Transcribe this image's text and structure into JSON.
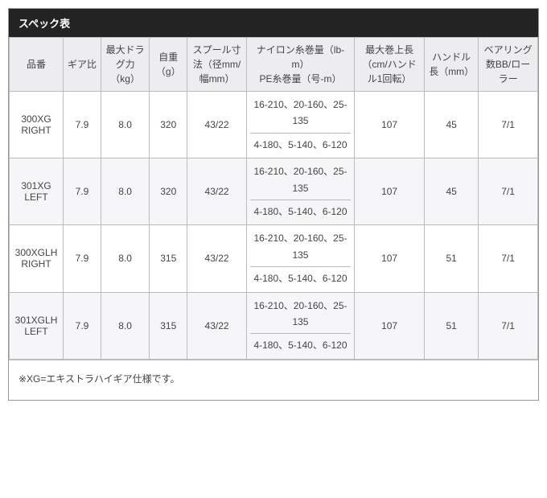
{
  "header": {
    "title": "スペック表"
  },
  "table": {
    "columns": [
      "品番",
      "ギア比",
      "最大ドラグ力（kg）",
      "自重（g）",
      "スプール寸法（径mm/幅mm）",
      "ナイロン糸巻量（lb-m）\nPE糸巻量（号-m）",
      "最大巻上長（cm/ハンドル1回転）",
      "ハンドル長（mm）",
      "ベアリング数BB/ローラー"
    ],
    "col_widths_pct": [
      10,
      7,
      9,
      7,
      11,
      20,
      13,
      10,
      11
    ],
    "header_bg": "#ededef",
    "alt_row_bg": "#f6f6f8",
    "border_color": "#bbbbbb",
    "text_color": "#444444",
    "font_size_pt": 12,
    "rows": [
      {
        "model": "300XG RIGHT",
        "gear": "7.9",
        "drag": "8.0",
        "weight": "320",
        "spool": "43/22",
        "nylon": "16-210、20-160、25-135",
        "pe": "4-180、5-140、6-120",
        "retrieve": "107",
        "handle": "45",
        "bearing": "7/1"
      },
      {
        "model": "301XG LEFT",
        "gear": "7.9",
        "drag": "8.0",
        "weight": "320",
        "spool": "43/22",
        "nylon": "16-210、20-160、25-135",
        "pe": "4-180、5-140、6-120",
        "retrieve": "107",
        "handle": "45",
        "bearing": "7/1"
      },
      {
        "model": "300XGLH RIGHT",
        "gear": "7.9",
        "drag": "8.0",
        "weight": "315",
        "spool": "43/22",
        "nylon": "16-210、20-160、25-135",
        "pe": "4-180、5-140、6-120",
        "retrieve": "107",
        "handle": "51",
        "bearing": "7/1"
      },
      {
        "model": "301XGLH LEFT",
        "gear": "7.9",
        "drag": "8.0",
        "weight": "315",
        "spool": "43/22",
        "nylon": "16-210、20-160、25-135",
        "pe": "4-180、5-140、6-120",
        "retrieve": "107",
        "handle": "51",
        "bearing": "7/1"
      }
    ]
  },
  "footnote": "※XG=エキストラハイギア仕様です。"
}
